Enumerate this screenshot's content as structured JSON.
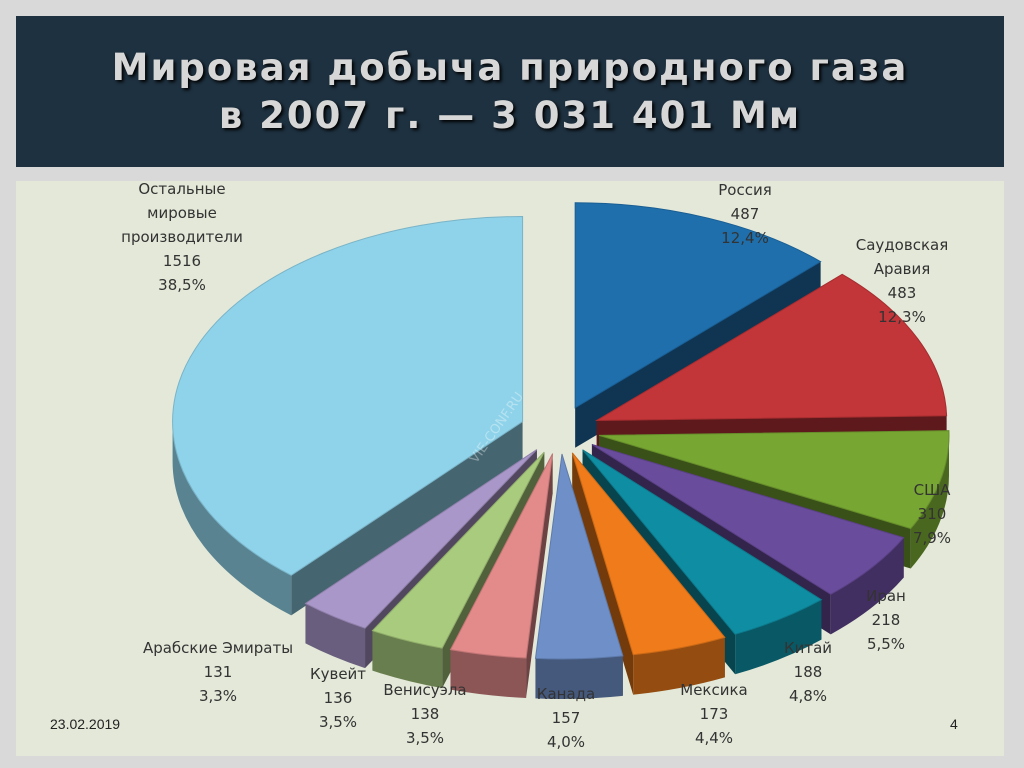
{
  "title": {
    "line1": "Мировая добыча природного газа",
    "line2": "в 2007 г. — 3 031 401 Мм"
  },
  "footer": {
    "date": "23.02.2019",
    "page": "4"
  },
  "watermark": "VIE-CONF.RU",
  "chart_data": {
    "type": "pie",
    "style": "3d-exploded",
    "series": [
      {
        "label": [
          "Россия"
        ],
        "value": 487,
        "value_text": "487",
        "percent": "12,4%",
        "color": "#1f6fad"
      },
      {
        "label": [
          "Саудовская",
          "Аравия"
        ],
        "value": 483,
        "value_text": "483",
        "percent": "12,3%",
        "color": "#c23538"
      },
      {
        "label": [
          "США"
        ],
        "value": 310,
        "value_text": "310",
        "percent": "7,9%",
        "color": "#77a632"
      },
      {
        "label": [
          "Иран"
        ],
        "value": 218,
        "value_text": "218",
        "percent": "5,5%",
        "color": "#6a4c9c"
      },
      {
        "label": [
          "Китай"
        ],
        "value": 188,
        "value_text": "188",
        "percent": "4,8%",
        "color": "#0f8ea3"
      },
      {
        "label": [
          "Мексика"
        ],
        "value": 173,
        "value_text": "173",
        "percent": "4,4%",
        "color": "#ef7b1a"
      },
      {
        "label": [
          "Канада"
        ],
        "value": 157,
        "value_text": "157",
        "percent": "4,0%",
        "color": "#6e8fc8"
      },
      {
        "label": [
          "Венисуэла"
        ],
        "value": 138,
        "value_text": "138",
        "percent": "3,5%",
        "color": "#e38a8a"
      },
      {
        "label": [
          "Кувейт"
        ],
        "value": 136,
        "value_text": "136",
        "percent": "3,5%",
        "color": "#a9cb7d"
      },
      {
        "label": [
          "Арабские Эмираты"
        ],
        "value": 131,
        "value_text": "131",
        "percent": "3,3%",
        "color": "#a997c9"
      },
      {
        "label": [
          "Остальные",
          "мировые",
          "производители"
        ],
        "value": 1516,
        "value_text": "1516",
        "percent": "38,5%",
        "color": "#8fd3ea"
      }
    ]
  }
}
